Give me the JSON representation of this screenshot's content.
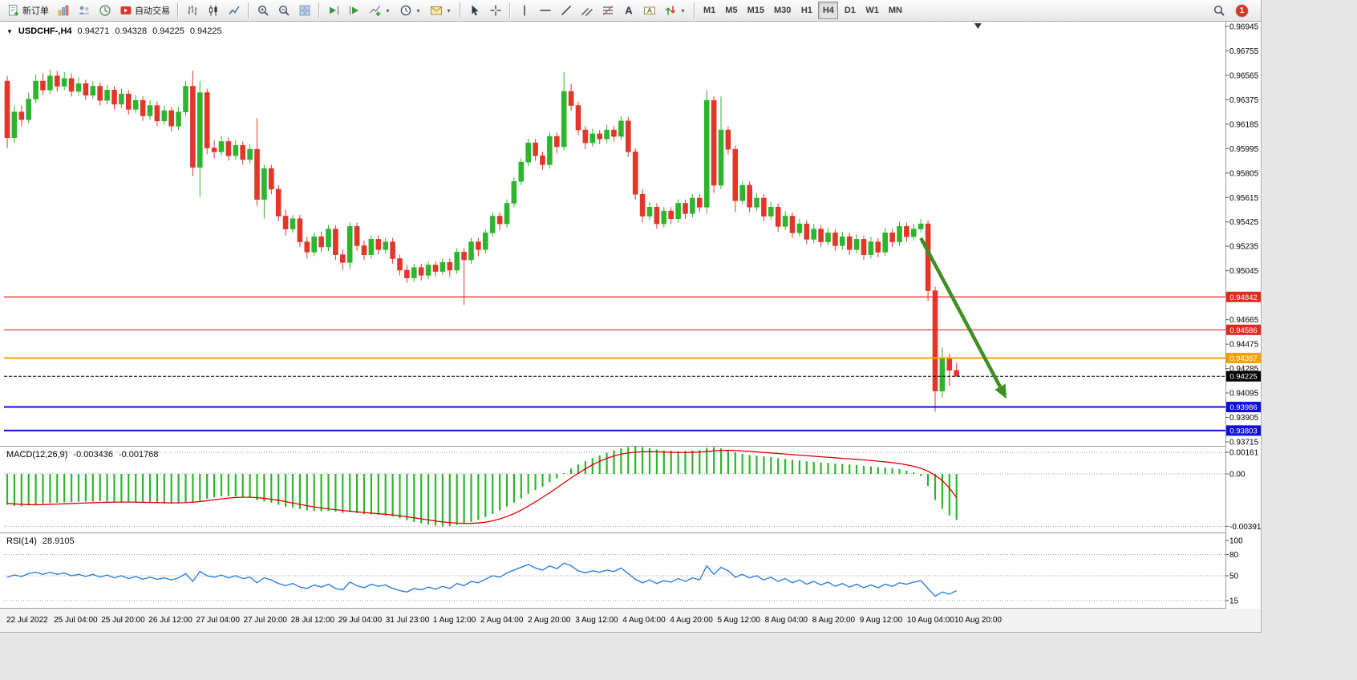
{
  "toolbar": {
    "new_order": "新订单",
    "auto_trading": "自动交易",
    "timeframe_labels": [
      "M1",
      "M5",
      "M15",
      "M30",
      "H1",
      "H4",
      "D1",
      "W1",
      "MN"
    ],
    "active_timeframe": "H4",
    "notification_count": "1"
  },
  "chart_header": {
    "symbol_period": "USDCHF-,H4",
    "open": "0.94271",
    "high": "0.94328",
    "low": "0.94225",
    "close": "0.94225"
  },
  "price_lines": [
    {
      "price": 0.94842,
      "label": "0.94842",
      "color": "#e02a20",
      "width": 1.2
    },
    {
      "price": 0.94586,
      "label": "0.94586",
      "color": "#e02a20",
      "width": 1.2
    },
    {
      "price": 0.94367,
      "label": "0.94367",
      "color": "#f7a100",
      "width": 2
    },
    {
      "price": 0.94225,
      "label": "0.94225",
      "color": "#000000",
      "width": 1,
      "style": "current"
    },
    {
      "price": 0.93986,
      "label": "0.93986",
      "color": "#0d0de0",
      "width": 2
    },
    {
      "price": 0.93803,
      "label": "0.93803",
      "color": "#0d0de0",
      "width": 2
    }
  ],
  "chart_data": {
    "type": "candlestick",
    "symbol": "USDCHF",
    "timeframe": "H4",
    "price_unit": 1e-05,
    "candle_up_color": "#2db52d",
    "candle_down_color": "#e2362a",
    "price_axis_labels": [
      "0.96945",
      "0.96755",
      "0.96565",
      "0.96375",
      "0.96185",
      "0.95995",
      "0.95805",
      "0.95615",
      "0.95425",
      "0.95235",
      "0.95045",
      "0.94855",
      "0.94665",
      "0.94475",
      "0.94285",
      "0.94095",
      "0.93905",
      "0.93715"
    ],
    "time_labels": [
      "22 Jul 2022",
      "25 Jul 04:00",
      "25 Jul 20:00",
      "26 Jul 12:00",
      "27 Jul 04:00",
      "27 Jul 20:00",
      "28 Jul 12:00",
      "29 Jul 04:00",
      "31 Jul 23:00",
      "1 Aug 12:00",
      "2 Aug 04:00",
      "2 Aug 20:00",
      "3 Aug 12:00",
      "4 Aug 04:00",
      "4 Aug 20:00",
      "5 Aug 12:00",
      "8 Aug 04:00",
      "8 Aug 20:00",
      "9 Aug 12:00",
      "10 Aug 04:00",
      "10 Aug 20:00"
    ],
    "candles_ohlc_1e5": [
      [
        96520,
        96560,
        96000,
        96080
      ],
      [
        96080,
        96330,
        96040,
        96280
      ],
      [
        96280,
        96330,
        96170,
        96220
      ],
      [
        96220,
        96430,
        96190,
        96380
      ],
      [
        96380,
        96570,
        96350,
        96520
      ],
      [
        96520,
        96580,
        96410,
        96450
      ],
      [
        96450,
        96610,
        96420,
        96560
      ],
      [
        96560,
        96600,
        96440,
        96480
      ],
      [
        96480,
        96590,
        96450,
        96540
      ],
      [
        96540,
        96580,
        96400,
        96440
      ],
      [
        96440,
        96550,
        96410,
        96500
      ],
      [
        96500,
        96530,
        96370,
        96410
      ],
      [
        96410,
        96520,
        96380,
        96480
      ],
      [
        96480,
        96510,
        96330,
        96370
      ],
      [
        96370,
        96490,
        96340,
        96450
      ],
      [
        96450,
        96480,
        96300,
        96340
      ],
      [
        96340,
        96460,
        96310,
        96420
      ],
      [
        96420,
        96450,
        96260,
        96300
      ],
      [
        96300,
        96410,
        96270,
        96370
      ],
      [
        96370,
        96400,
        96210,
        96250
      ],
      [
        96250,
        96370,
        96220,
        96330
      ],
      [
        96330,
        96360,
        96170,
        96210
      ],
      [
        96210,
        96330,
        96180,
        96290
      ],
      [
        96290,
        96320,
        96130,
        96170
      ],
      [
        96170,
        96320,
        96140,
        96280
      ],
      [
        96280,
        96520,
        96250,
        96480
      ],
      [
        96480,
        96600,
        95780,
        95850
      ],
      [
        95850,
        96520,
        95620,
        96430
      ],
      [
        96430,
        96460,
        95950,
        96000
      ],
      [
        96000,
        96060,
        95920,
        95970
      ],
      [
        95970,
        96090,
        95940,
        96050
      ],
      [
        96050,
        96080,
        95900,
        95940
      ],
      [
        95940,
        96060,
        95910,
        96020
      ],
      [
        96020,
        96050,
        95870,
        95910
      ],
      [
        95910,
        96030,
        95880,
        95990
      ],
      [
        95990,
        96230,
        95550,
        95600
      ],
      [
        95600,
        95870,
        95450,
        95840
      ],
      [
        95840,
        95870,
        95640,
        95680
      ],
      [
        95680,
        95710,
        95430,
        95470
      ],
      [
        95470,
        95520,
        95320,
        95370
      ],
      [
        95370,
        95480,
        95340,
        95450
      ],
      [
        95450,
        95480,
        95230,
        95270
      ],
      [
        95270,
        95310,
        95140,
        95190
      ],
      [
        95190,
        95340,
        95160,
        95310
      ],
      [
        95310,
        95350,
        95190,
        95230
      ],
      [
        95230,
        95400,
        95200,
        95370
      ],
      [
        95370,
        95400,
        95130,
        95170
      ],
      [
        95170,
        95210,
        95050,
        95110
      ],
      [
        95110,
        95420,
        95060,
        95390
      ],
      [
        95390,
        95420,
        95200,
        95240
      ],
      [
        95240,
        95280,
        95130,
        95170
      ],
      [
        95170,
        95320,
        95140,
        95290
      ],
      [
        95290,
        95320,
        95170,
        95210
      ],
      [
        95210,
        95300,
        95180,
        95270
      ],
      [
        95270,
        95300,
        95100,
        95140
      ],
      [
        95140,
        95170,
        95010,
        95050
      ],
      [
        95050,
        95090,
        94950,
        94990
      ],
      [
        94990,
        95100,
        94960,
        95070
      ],
      [
        95070,
        95100,
        94970,
        95010
      ],
      [
        95010,
        95120,
        94980,
        95090
      ],
      [
        95090,
        95120,
        95000,
        95040
      ],
      [
        95040,
        95140,
        95010,
        95110
      ],
      [
        95110,
        95140,
        95000,
        95050
      ],
      [
        95050,
        95220,
        95020,
        95190
      ],
      [
        95190,
        95220,
        94780,
        95130
      ],
      [
        95130,
        95300,
        95100,
        95270
      ],
      [
        95270,
        95300,
        95160,
        95210
      ],
      [
        95210,
        95370,
        95180,
        95340
      ],
      [
        95340,
        95500,
        95310,
        95470
      ],
      [
        95470,
        95500,
        95360,
        95410
      ],
      [
        95410,
        95600,
        95380,
        95570
      ],
      [
        95570,
        95770,
        95540,
        95740
      ],
      [
        95740,
        95920,
        95710,
        95890
      ],
      [
        95890,
        96070,
        95860,
        96040
      ],
      [
        96040,
        96070,
        95900,
        95940
      ],
      [
        95940,
        95970,
        95830,
        95870
      ],
      [
        95870,
        96120,
        95840,
        96090
      ],
      [
        96090,
        96120,
        95960,
        96010
      ],
      [
        96010,
        96590,
        95980,
        96440
      ],
      [
        96440,
        96500,
        96290,
        96330
      ],
      [
        96330,
        96360,
        96100,
        96140
      ],
      [
        96140,
        96170,
        95990,
        96040
      ],
      [
        96040,
        96150,
        96010,
        96110
      ],
      [
        96110,
        96140,
        96030,
        96070
      ],
      [
        96070,
        96180,
        96040,
        96140
      ],
      [
        96140,
        96170,
        96050,
        96090
      ],
      [
        96090,
        96250,
        96060,
        96210
      ],
      [
        96210,
        96240,
        95930,
        95970
      ],
      [
        95970,
        96000,
        95600,
        95640
      ],
      [
        95640,
        95680,
        95420,
        95470
      ],
      [
        95470,
        95580,
        95440,
        95540
      ],
      [
        95540,
        95570,
        95370,
        95410
      ],
      [
        95410,
        95540,
        95380,
        95510
      ],
      [
        95510,
        95540,
        95410,
        95450
      ],
      [
        95450,
        95600,
        95420,
        95570
      ],
      [
        95570,
        95600,
        95450,
        95490
      ],
      [
        95490,
        95640,
        95460,
        95610
      ],
      [
        95610,
        95640,
        95500,
        95540
      ],
      [
        95540,
        96450,
        95490,
        96370
      ],
      [
        96370,
        96400,
        95650,
        95710
      ],
      [
        95710,
        96400,
        95680,
        96140
      ],
      [
        96140,
        96170,
        95950,
        95990
      ],
      [
        95990,
        96020,
        95500,
        95590
      ],
      [
        95590,
        95740,
        95560,
        95710
      ],
      [
        95710,
        95740,
        95500,
        95540
      ],
      [
        95540,
        95650,
        95510,
        95610
      ],
      [
        95610,
        95640,
        95430,
        95470
      ],
      [
        95470,
        95580,
        95440,
        95540
      ],
      [
        95540,
        95570,
        95350,
        95390
      ],
      [
        95390,
        95510,
        95360,
        95470
      ],
      [
        95470,
        95500,
        95300,
        95340
      ],
      [
        95340,
        95450,
        95310,
        95410
      ],
      [
        95410,
        95440,
        95250,
        95290
      ],
      [
        95290,
        95410,
        95260,
        95370
      ],
      [
        95370,
        95400,
        95230,
        95270
      ],
      [
        95270,
        95380,
        95240,
        95340
      ],
      [
        95340,
        95370,
        95200,
        95240
      ],
      [
        95240,
        95350,
        95210,
        95310
      ],
      [
        95310,
        95340,
        95170,
        95210
      ],
      [
        95210,
        95330,
        95180,
        95290
      ],
      [
        95290,
        95320,
        95130,
        95170
      ],
      [
        95170,
        95310,
        95140,
        95270
      ],
      [
        95270,
        95300,
        95150,
        95190
      ],
      [
        95190,
        95380,
        95160,
        95340
      ],
      [
        95340,
        95370,
        95230,
        95270
      ],
      [
        95270,
        95430,
        95240,
        95390
      ],
      [
        95390,
        95420,
        95270,
        95310
      ],
      [
        95310,
        95410,
        95280,
        95370
      ],
      [
        95370,
        95450,
        95340,
        95410
      ],
      [
        95410,
        95440,
        94810,
        94890
      ],
      [
        94890,
        94920,
        93950,
        94110
      ],
      [
        94110,
        94450,
        94060,
        94370
      ],
      [
        94370,
        94400,
        94150,
        94271
      ],
      [
        94271,
        94328,
        94225,
        94225
      ]
    ],
    "trend_arrow": {
      "from_index": 128,
      "from_price": 0.953,
      "to_index": 140,
      "to_price": 0.9405,
      "color": "#3e8e23"
    },
    "shift_marker_index": 136,
    "macd": {
      "name": "MACD(12,26,9)",
      "value_main": "-0.003436",
      "value_signal": "-0.001768",
      "axis_labels": [
        "0.00161",
        "0.00",
        "-0.00391"
      ],
      "histogram_color": "#2db52d",
      "signal_color": "#e00000",
      "histogram_1e5": [
        -230,
        -238,
        -242,
        -235,
        -228,
        -222,
        -218,
        -215,
        -212,
        -210,
        -208,
        -206,
        -205,
        -204,
        -206,
        -208,
        -210,
        -212,
        -213,
        -215,
        -216,
        -218,
        -220,
        -221,
        -220,
        -210,
        -215,
        -200,
        -185,
        -175,
        -168,
        -165,
        -168,
        -172,
        -175,
        -195,
        -205,
        -215,
        -230,
        -245,
        -252,
        -262,
        -272,
        -275,
        -278,
        -276,
        -282,
        -290,
        -285,
        -292,
        -300,
        -302,
        -306,
        -310,
        -318,
        -330,
        -345,
        -358,
        -368,
        -378,
        -386,
        -391,
        -388,
        -380,
        -372,
        -358,
        -342,
        -322,
        -298,
        -272,
        -244,
        -214,
        -182,
        -148,
        -120,
        -95,
        -62,
        -35,
        5,
        40,
        70,
        95,
        118,
        138,
        158,
        175,
        190,
        200,
        205,
        200,
        192,
        182,
        175,
        172,
        170,
        172,
        175,
        178,
        195,
        200,
        190,
        178,
        162,
        150,
        142,
        138,
        130,
        125,
        118,
        112,
        105,
        100,
        94,
        90,
        85,
        82,
        78,
        75,
        70,
        66,
        60,
        56,
        50,
        48,
        42,
        36,
        25,
        10,
        -15,
        -90,
        -195,
        -260,
        -310,
        -344
      ],
      "signal_1e5": [
        -220,
        -224,
        -227,
        -229,
        -230,
        -229,
        -227,
        -225,
        -223,
        -221,
        -219,
        -217,
        -215,
        -213,
        -212,
        -211,
        -210,
        -210,
        -211,
        -212,
        -213,
        -214,
        -215,
        -216,
        -216,
        -214,
        -211,
        -206,
        -200,
        -193,
        -186,
        -180,
        -176,
        -174,
        -174,
        -177,
        -182,
        -189,
        -197,
        -207,
        -217,
        -227,
        -237,
        -246,
        -254,
        -261,
        -267,
        -273,
        -278,
        -283,
        -288,
        -292,
        -297,
        -301,
        -306,
        -312,
        -319,
        -327,
        -335,
        -343,
        -351,
        -358,
        -363,
        -367,
        -369,
        -369,
        -366,
        -360,
        -350,
        -336,
        -318,
        -296,
        -270,
        -240,
        -208,
        -175,
        -140,
        -104,
        -67,
        -30,
        5,
        38,
        68,
        94,
        116,
        134,
        147,
        156,
        162,
        165,
        166,
        165,
        163,
        161,
        160,
        160,
        161,
        163,
        167,
        172,
        175,
        176,
        175,
        172,
        168,
        164,
        160,
        156,
        152,
        148,
        144,
        140,
        136,
        132,
        128,
        124,
        120,
        116,
        112,
        108,
        104,
        100,
        95,
        90,
        84,
        77,
        68,
        57,
        42,
        20,
        -10,
        -50,
        -105,
        -177
      ]
    },
    "rsi": {
      "name": "RSI(14)",
      "value": "28.9105",
      "axis_labels": [
        "100",
        "80",
        "50",
        "15"
      ],
      "levels": [
        80,
        50,
        15
      ],
      "color": "#2f80e0",
      "series": [
        48,
        51,
        49,
        53,
        55,
        52,
        55,
        52,
        54,
        50,
        52,
        49,
        52,
        48,
        51,
        47,
        50,
        46,
        49,
        45,
        48,
        45,
        47,
        44,
        47,
        53,
        42,
        56,
        50,
        48,
        51,
        47,
        50,
        46,
        48,
        40,
        47,
        44,
        39,
        36,
        39,
        34,
        32,
        37,
        34,
        38,
        32,
        30,
        41,
        36,
        33,
        38,
        35,
        37,
        32,
        29,
        27,
        32,
        30,
        34,
        31,
        35,
        32,
        39,
        36,
        42,
        40,
        45,
        50,
        48,
        54,
        58,
        62,
        66,
        61,
        58,
        64,
        60,
        68,
        64,
        57,
        54,
        57,
        55,
        58,
        56,
        61,
        53,
        45,
        40,
        44,
        39,
        43,
        41,
        46,
        42,
        47,
        44,
        64,
        52,
        62,
        57,
        48,
        52,
        47,
        50,
        44,
        48,
        42,
        46,
        40,
        44,
        38,
        42,
        37,
        41,
        35,
        39,
        34,
        38,
        33,
        37,
        33,
        38,
        35,
        40,
        38,
        41,
        43,
        32,
        21,
        27,
        24,
        29
      ]
    }
  }
}
